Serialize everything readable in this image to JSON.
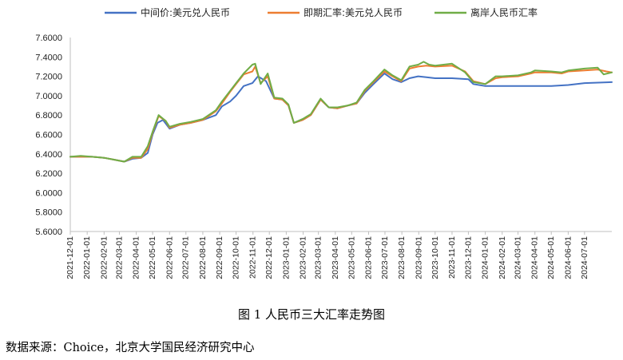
{
  "caption": "图 1 人民币三大汇率走势图",
  "source": "数据来源：Choice，北京大学国民经济研究中心",
  "chart_data": {
    "type": "line",
    "title": "",
    "xlabel": "",
    "ylabel": "",
    "ylim": [
      5.6,
      7.6
    ],
    "yticks": [
      "5.6000",
      "5.8000",
      "6.0000",
      "6.2000",
      "6.4000",
      "6.6000",
      "6.8000",
      "7.0000",
      "7.2000",
      "7.4000",
      "7.6000"
    ],
    "xrange": [
      "2021-12-01",
      "2024-08-20"
    ],
    "xticks": [
      "2021-12-01",
      "2022-01-01",
      "2022-02-01",
      "2022-03-01",
      "2022-04-01",
      "2022-05-01",
      "2022-06-01",
      "2022-07-01",
      "2022-08-01",
      "2022-09-01",
      "2022-10-01",
      "2022-11-01",
      "2022-12-01",
      "2023-01-01",
      "2023-02-01",
      "2023-03-01",
      "2023-04-01",
      "2023-05-01",
      "2023-06-01",
      "2023-07-01",
      "2023-08-01",
      "2023-09-01",
      "2023-10-01",
      "2023-11-01",
      "2023-12-01",
      "2024-01-01",
      "2024-02-01",
      "2024-03-01",
      "2024-04-01",
      "2024-05-01",
      "2024-06-01",
      "2024-07-01"
    ],
    "grid": false,
    "legend": "top",
    "series": [
      {
        "name": "中间价:美元兑人民币",
        "color": "#4472C4",
        "points": [
          [
            "2021-12-01",
            6.37
          ],
          [
            "2021-12-20",
            6.37
          ],
          [
            "2022-01-10",
            6.37
          ],
          [
            "2022-02-01",
            6.36
          ],
          [
            "2022-02-20",
            6.34
          ],
          [
            "2022-03-10",
            6.32
          ],
          [
            "2022-03-25",
            6.35
          ],
          [
            "2022-04-10",
            6.36
          ],
          [
            "2022-04-22",
            6.41
          ],
          [
            "2022-05-01",
            6.6
          ],
          [
            "2022-05-10",
            6.72
          ],
          [
            "2022-05-20",
            6.75
          ],
          [
            "2022-06-01",
            6.66
          ],
          [
            "2022-06-20",
            6.7
          ],
          [
            "2022-07-10",
            6.72
          ],
          [
            "2022-08-01",
            6.75
          ],
          [
            "2022-08-25",
            6.8
          ],
          [
            "2022-09-05",
            6.89
          ],
          [
            "2022-09-20",
            6.94
          ],
          [
            "2022-10-01",
            7.0
          ],
          [
            "2022-10-15",
            7.1
          ],
          [
            "2022-10-31",
            7.13
          ],
          [
            "2022-11-10",
            7.2
          ],
          [
            "2022-11-25",
            7.15
          ],
          [
            "2022-12-10",
            6.97
          ],
          [
            "2022-12-25",
            6.96
          ],
          [
            "2023-01-05",
            6.9
          ],
          [
            "2023-01-15",
            6.72
          ],
          [
            "2023-01-31",
            6.75
          ],
          [
            "2023-02-15",
            6.8
          ],
          [
            "2023-03-05",
            6.96
          ],
          [
            "2023-03-20",
            6.88
          ],
          [
            "2023-04-05",
            6.87
          ],
          [
            "2023-04-25",
            6.9
          ],
          [
            "2023-05-10",
            6.92
          ],
          [
            "2023-05-25",
            7.03
          ],
          [
            "2023-06-10",
            7.12
          ],
          [
            "2023-06-30",
            7.23
          ],
          [
            "2023-07-15",
            7.17
          ],
          [
            "2023-07-31",
            7.14
          ],
          [
            "2023-08-15",
            7.18
          ],
          [
            "2023-08-31",
            7.2
          ],
          [
            "2023-09-15",
            7.19
          ],
          [
            "2023-10-01",
            7.18
          ],
          [
            "2023-11-01",
            7.18
          ],
          [
            "2023-12-01",
            7.17
          ],
          [
            "2023-12-10",
            7.12
          ],
          [
            "2024-01-01",
            7.1
          ],
          [
            "2024-02-01",
            7.1
          ],
          [
            "2024-03-01",
            7.1
          ],
          [
            "2024-04-01",
            7.1
          ],
          [
            "2024-05-01",
            7.1
          ],
          [
            "2024-06-01",
            7.11
          ],
          [
            "2024-07-01",
            7.13
          ],
          [
            "2024-08-20",
            7.14
          ]
        ]
      },
      {
        "name": "即期汇率:美元兑人民币",
        "color": "#ED7D31",
        "points": [
          [
            "2021-12-01",
            6.37
          ],
          [
            "2021-12-20",
            6.37
          ],
          [
            "2022-01-10",
            6.37
          ],
          [
            "2022-02-01",
            6.36
          ],
          [
            "2022-02-20",
            6.34
          ],
          [
            "2022-03-10",
            6.32
          ],
          [
            "2022-03-25",
            6.36
          ],
          [
            "2022-04-10",
            6.36
          ],
          [
            "2022-04-22",
            6.45
          ],
          [
            "2022-05-01",
            6.62
          ],
          [
            "2022-05-12",
            6.79
          ],
          [
            "2022-05-25",
            6.74
          ],
          [
            "2022-06-01",
            6.67
          ],
          [
            "2022-06-20",
            6.7
          ],
          [
            "2022-07-10",
            6.72
          ],
          [
            "2022-08-01",
            6.75
          ],
          [
            "2022-08-25",
            6.84
          ],
          [
            "2022-09-05",
            6.92
          ],
          [
            "2022-09-20",
            7.04
          ],
          [
            "2022-10-01",
            7.12
          ],
          [
            "2022-10-15",
            7.22
          ],
          [
            "2022-10-31",
            7.25
          ],
          [
            "2022-11-05",
            7.3
          ],
          [
            "2022-11-15",
            7.13
          ],
          [
            "2022-11-28",
            7.2
          ],
          [
            "2022-12-10",
            6.97
          ],
          [
            "2022-12-25",
            6.96
          ],
          [
            "2023-01-05",
            6.9
          ],
          [
            "2023-01-15",
            6.72
          ],
          [
            "2023-01-31",
            6.75
          ],
          [
            "2023-02-15",
            6.8
          ],
          [
            "2023-03-05",
            6.96
          ],
          [
            "2023-03-20",
            6.88
          ],
          [
            "2023-04-05",
            6.87
          ],
          [
            "2023-04-25",
            6.9
          ],
          [
            "2023-05-10",
            6.92
          ],
          [
            "2023-05-25",
            7.05
          ],
          [
            "2023-06-10",
            7.14
          ],
          [
            "2023-06-30",
            7.25
          ],
          [
            "2023-07-15",
            7.2
          ],
          [
            "2023-07-31",
            7.15
          ],
          [
            "2023-08-15",
            7.28
          ],
          [
            "2023-08-31",
            7.3
          ],
          [
            "2023-09-15",
            7.31
          ],
          [
            "2023-10-01",
            7.3
          ],
          [
            "2023-11-01",
            7.31
          ],
          [
            "2023-11-25",
            7.25
          ],
          [
            "2023-12-10",
            7.15
          ],
          [
            "2024-01-01",
            7.12
          ],
          [
            "2024-01-20",
            7.18
          ],
          [
            "2024-02-01",
            7.19
          ],
          [
            "2024-03-01",
            7.2
          ],
          [
            "2024-03-25",
            7.23
          ],
          [
            "2024-04-01",
            7.24
          ],
          [
            "2024-05-01",
            7.24
          ],
          [
            "2024-05-20",
            7.23
          ],
          [
            "2024-06-01",
            7.25
          ],
          [
            "2024-07-01",
            7.26
          ],
          [
            "2024-07-25",
            7.27
          ],
          [
            "2024-08-10",
            7.25
          ],
          [
            "2024-08-20",
            7.24
          ]
        ]
      },
      {
        "name": "离岸人民币汇率",
        "color": "#70AD47",
        "points": [
          [
            "2021-12-01",
            6.37
          ],
          [
            "2021-12-20",
            6.38
          ],
          [
            "2022-01-10",
            6.37
          ],
          [
            "2022-02-01",
            6.36
          ],
          [
            "2022-02-20",
            6.34
          ],
          [
            "2022-03-10",
            6.32
          ],
          [
            "2022-03-25",
            6.37
          ],
          [
            "2022-04-10",
            6.37
          ],
          [
            "2022-04-22",
            6.48
          ],
          [
            "2022-05-01",
            6.63
          ],
          [
            "2022-05-12",
            6.8
          ],
          [
            "2022-05-25",
            6.74
          ],
          [
            "2022-06-01",
            6.68
          ],
          [
            "2022-06-20",
            6.71
          ],
          [
            "2022-07-10",
            6.73
          ],
          [
            "2022-08-01",
            6.76
          ],
          [
            "2022-08-25",
            6.85
          ],
          [
            "2022-09-05",
            6.94
          ],
          [
            "2022-09-20",
            7.05
          ],
          [
            "2022-10-01",
            7.13
          ],
          [
            "2022-10-15",
            7.23
          ],
          [
            "2022-10-31",
            7.32
          ],
          [
            "2022-11-05",
            7.33
          ],
          [
            "2022-11-15",
            7.12
          ],
          [
            "2022-11-28",
            7.23
          ],
          [
            "2022-12-10",
            6.98
          ],
          [
            "2022-12-25",
            6.97
          ],
          [
            "2023-01-05",
            6.91
          ],
          [
            "2023-01-15",
            6.72
          ],
          [
            "2023-01-31",
            6.76
          ],
          [
            "2023-02-15",
            6.81
          ],
          [
            "2023-03-05",
            6.97
          ],
          [
            "2023-03-20",
            6.88
          ],
          [
            "2023-04-05",
            6.88
          ],
          [
            "2023-04-25",
            6.9
          ],
          [
            "2023-05-10",
            6.93
          ],
          [
            "2023-05-25",
            7.06
          ],
          [
            "2023-06-10",
            7.15
          ],
          [
            "2023-06-30",
            7.27
          ],
          [
            "2023-07-15",
            7.21
          ],
          [
            "2023-07-31",
            7.16
          ],
          [
            "2023-08-15",
            7.3
          ],
          [
            "2023-08-31",
            7.32
          ],
          [
            "2023-09-10",
            7.35
          ],
          [
            "2023-09-20",
            7.32
          ],
          [
            "2023-10-01",
            7.31
          ],
          [
            "2023-11-01",
            7.33
          ],
          [
            "2023-11-25",
            7.24
          ],
          [
            "2023-12-10",
            7.14
          ],
          [
            "2024-01-01",
            7.12
          ],
          [
            "2024-01-20",
            7.2
          ],
          [
            "2024-02-01",
            7.2
          ],
          [
            "2024-03-01",
            7.21
          ],
          [
            "2024-03-25",
            7.24
          ],
          [
            "2024-04-01",
            7.26
          ],
          [
            "2024-05-01",
            7.25
          ],
          [
            "2024-05-20",
            7.24
          ],
          [
            "2024-06-01",
            7.26
          ],
          [
            "2024-07-01",
            7.28
          ],
          [
            "2024-07-25",
            7.29
          ],
          [
            "2024-08-05",
            7.22
          ],
          [
            "2024-08-20",
            7.24
          ]
        ]
      }
    ]
  }
}
